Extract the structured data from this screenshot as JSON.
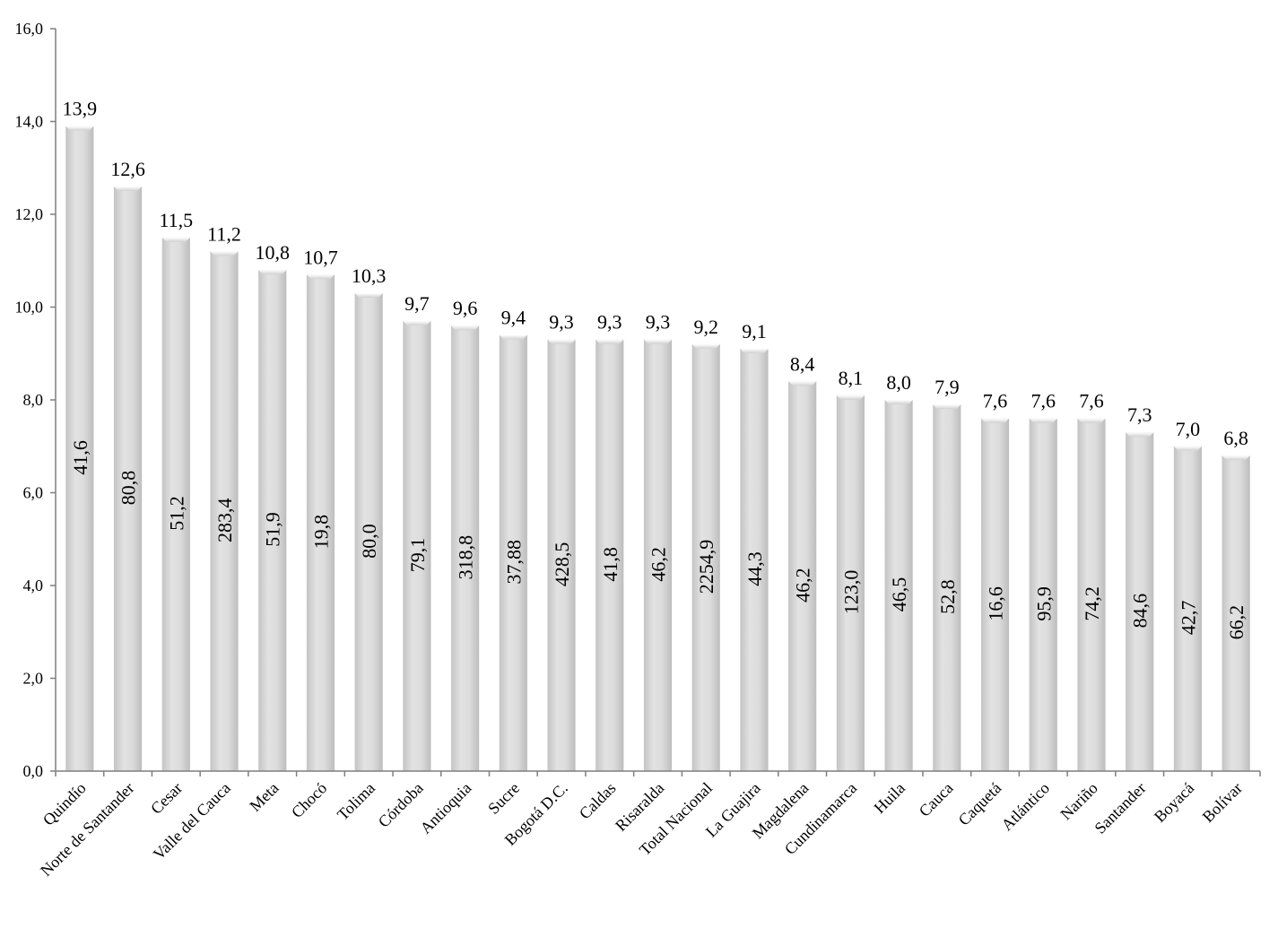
{
  "chart_data": {
    "type": "bar",
    "categories": [
      "Quindío",
      "Norte de Santander",
      "Cesar",
      "Valle del Cauca",
      "Meta",
      "Chocó",
      "Tolima",
      "Córdoba",
      "Antioquia",
      "Sucre",
      "Bogotá D.C.",
      "Caldas",
      "Risaralda",
      "Total Nacional",
      "La Guajira",
      "Magdalena",
      "Cundinamarca",
      "Huila",
      "Cauca",
      "Caquetá",
      "Atlántico",
      "Nariño",
      "Santander",
      "Boyacá",
      "Bolívar"
    ],
    "values": [
      13.9,
      12.6,
      11.5,
      11.2,
      10.8,
      10.7,
      10.3,
      9.7,
      9.6,
      9.4,
      9.3,
      9.3,
      9.3,
      9.2,
      9.1,
      8.4,
      8.1,
      8.0,
      7.9,
      7.6,
      7.6,
      7.6,
      7.3,
      7.0,
      6.8
    ],
    "value_labels": [
      "13,9",
      "12,6",
      "11,5",
      "11,2",
      "10,8",
      "10,7",
      "10,3",
      "9,7",
      "9,6",
      "9,4",
      "9,3",
      "9,3",
      "9,3",
      "9,2",
      "9,1",
      "8,4",
      "8,1",
      "8,0",
      "7,9",
      "7,6",
      "7,6",
      "7,6",
      "7,3",
      "7,0",
      "6,8"
    ],
    "inner_labels": [
      "41,6",
      "80,8",
      "51,2",
      "283,4",
      "51,9",
      "19,8",
      "80,0",
      "79,1",
      "318,8",
      "37,88",
      "428,5",
      "41,8",
      "46,2",
      "2254,9",
      "44,3",
      "46,2",
      "123,0",
      "46,5",
      "52,8",
      "16,6",
      "95,9",
      "74,2",
      "84,6",
      "42,7",
      "66,2"
    ],
    "yticks": [
      "0,0",
      "2,0",
      "4,0",
      "6,0",
      "8,0",
      "10,0",
      "12,0",
      "14,0",
      "16,0"
    ],
    "ylim": [
      0,
      16
    ],
    "title": "",
    "xlabel": "",
    "ylabel": "",
    "grid": false,
    "bar_color": "#d9d9d9"
  }
}
